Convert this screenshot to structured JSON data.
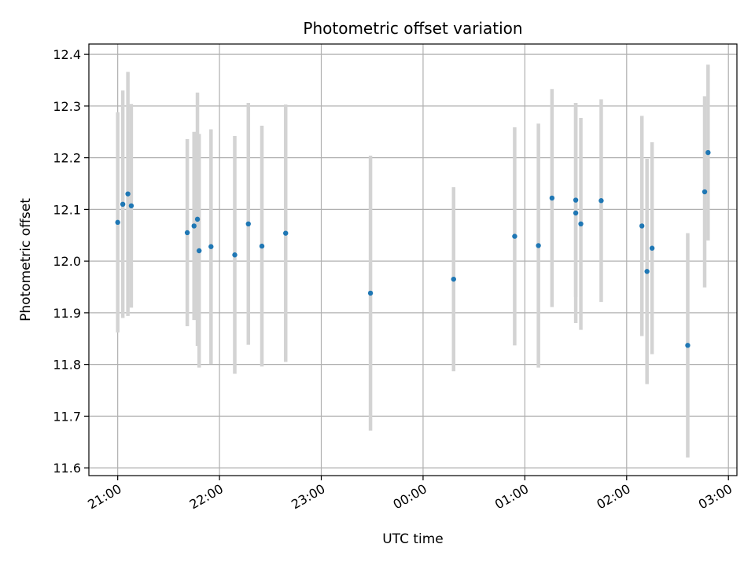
{
  "chart_data": {
    "type": "scatter",
    "title": "Photometric offset variation",
    "xlabel": "UTC time",
    "ylabel": "Photometric offset",
    "x_unit": "UTC time (hours, wrapping past midnight)",
    "xlim": [
      "20:43",
      "03:05"
    ],
    "ylim": [
      11.585,
      12.42
    ],
    "grid": true,
    "x_ticks": [
      "21:00",
      "22:00",
      "23:00",
      "00:00",
      "01:00",
      "02:00",
      "03:00"
    ],
    "y_ticks": [
      "11.6",
      "11.7",
      "11.8",
      "11.9",
      "12.0",
      "12.1",
      "12.2",
      "12.3",
      "12.4"
    ],
    "colors": {
      "point": "#1f77b4",
      "errorbar": "#d3d3d3",
      "grid": "#b0b0b0"
    },
    "points": [
      {
        "time": "21:00",
        "y": 12.075,
        "err": 0.213
      },
      {
        "time": "21:03",
        "y": 12.11,
        "err": 0.22
      },
      {
        "time": "21:06",
        "y": 12.13,
        "err": 0.236
      },
      {
        "time": "21:08",
        "y": 12.107,
        "err": 0.197
      },
      {
        "time": "21:41",
        "y": 12.055,
        "err": 0.181
      },
      {
        "time": "21:45",
        "y": 12.068,
        "err": 0.182
      },
      {
        "time": "21:47",
        "y": 12.081,
        "err": 0.245
      },
      {
        "time": "21:48",
        "y": 12.02,
        "err": 0.226
      },
      {
        "time": "21:55",
        "y": 12.028,
        "err": 0.227
      },
      {
        "time": "22:09",
        "y": 12.012,
        "err": 0.23
      },
      {
        "time": "22:17",
        "y": 12.072,
        "err": 0.234
      },
      {
        "time": "22:25",
        "y": 12.029,
        "err": 0.233
      },
      {
        "time": "22:39",
        "y": 12.054,
        "err": 0.249
      },
      {
        "time": "23:29",
        "y": 11.938,
        "err": 0.266
      },
      {
        "time": "00:18",
        "y": 11.965,
        "err": 0.178
      },
      {
        "time": "00:54",
        "y": 12.048,
        "err": 0.211
      },
      {
        "time": "01:08",
        "y": 12.03,
        "err": 0.236
      },
      {
        "time": "01:16",
        "y": 12.122,
        "err": 0.211
      },
      {
        "time": "01:30",
        "y": 12.118,
        "err": 0.188
      },
      {
        "time": "01:30",
        "y": 12.093,
        "err": 0.213
      },
      {
        "time": "01:33",
        "y": 12.072,
        "err": 0.205
      },
      {
        "time": "01:45",
        "y": 12.117,
        "err": 0.196
      },
      {
        "time": "02:09",
        "y": 12.068,
        "err": 0.213
      },
      {
        "time": "02:12",
        "y": 11.98,
        "err": 0.218
      },
      {
        "time": "02:15",
        "y": 12.025,
        "err": 0.205
      },
      {
        "time": "02:36",
        "y": 11.837,
        "err": 0.217
      },
      {
        "time": "02:46",
        "y": 12.134,
        "err": 0.185
      },
      {
        "time": "02:48",
        "y": 12.21,
        "err": 0.17
      }
    ]
  }
}
